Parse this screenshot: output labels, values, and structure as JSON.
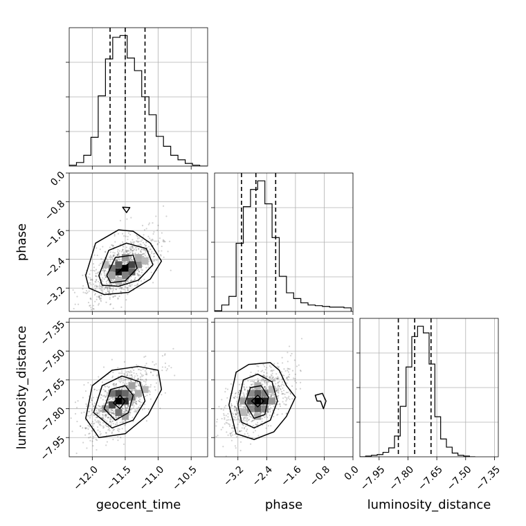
{
  "chart_data": {
    "type": "corner",
    "parameters": [
      "geocent_time",
      "phase",
      "luminosity_distance"
    ],
    "ranges": {
      "geocent_time": [
        -12.35,
        -10.25
      ],
      "phase": [
        -3.85,
        0.0
      ],
      "luminosity_distance": [
        -8.05,
        -7.33
      ]
    },
    "ticks": {
      "geocent_time": [
        -12.0,
        -11.5,
        -11.0,
        -10.5
      ],
      "phase": [
        -3.2,
        -2.4,
        -1.6,
        -0.8,
        0.0
      ],
      "luminosity_distance": [
        -7.95,
        -7.8,
        -7.65,
        -7.5,
        -7.35
      ]
    },
    "tick_labels": {
      "geocent_time": [
        "−12.0",
        "−11.5",
        "−11.0",
        "−10.5"
      ],
      "phase": [
        "−3.2",
        "−2.4",
        "−1.6",
        "−0.8",
        "0.0"
      ],
      "luminosity_distance": [
        "−7.95",
        "−7.80",
        "−7.65",
        "−7.50",
        "−7.35"
      ]
    },
    "grid": true,
    "histograms": {
      "geocent_time": {
        "bin_edges": [
          -12.35,
          -12.24,
          -12.13,
          -12.02,
          -11.91,
          -11.8,
          -11.69,
          -11.58,
          -11.47,
          -11.36,
          -11.25,
          -11.14,
          -11.03,
          -10.92,
          -10.81,
          -10.7,
          -10.59,
          -10.48,
          -10.37,
          -10.26
        ],
        "counts": [
          1,
          4,
          12,
          32,
          78,
          119,
          143,
          145,
          120,
          106,
          77,
          57,
          33,
          22,
          12,
          7,
          3,
          1,
          0
        ],
        "quantiles": [
          -11.73,
          -11.5,
          -11.2
        ]
      },
      "phase": {
        "bin_edges": [
          -3.85,
          -3.65,
          -3.45,
          -3.25,
          -3.05,
          -2.85,
          -2.65,
          -2.45,
          -2.25,
          -2.05,
          -1.85,
          -1.65,
          -1.45,
          -1.25,
          -1.05,
          -0.85,
          -0.65,
          -0.45,
          -0.25,
          -0.05
        ],
        "counts": [
          1,
          9,
          21,
          95,
          146,
          170,
          182,
          150,
          103,
          49,
          26,
          18,
          12,
          9,
          8,
          7,
          6,
          6,
          5
        ],
        "quantiles": [
          -3.1,
          -2.7,
          -2.15
        ]
      },
      "luminosity_distance": {
        "bin_edges": [
          -8.05,
          -8.02,
          -7.99,
          -7.96,
          -7.93,
          -7.9,
          -7.87,
          -7.84,
          -7.81,
          -7.78,
          -7.75,
          -7.72,
          -7.69,
          -7.66,
          -7.63,
          -7.6,
          -7.57,
          -7.54,
          -7.51,
          -7.48,
          -7.45
        ],
        "counts": [
          0,
          1,
          2,
          3,
          6,
          12,
          28,
          68,
          121,
          162,
          176,
          167,
          125,
          54,
          24,
          13,
          5,
          2,
          1,
          0
        ],
        "quantiles": [
          -7.85,
          -7.765,
          -7.68
        ]
      }
    },
    "pair_plots": [
      {
        "x": "geocent_time",
        "y": "phase",
        "center": [
          -11.55,
          -2.65
        ],
        "contours": [
          [
            [
              -11.45,
              -2.52
            ],
            [
              -11.55,
              -2.65
            ],
            [
              -11.62,
              -2.78
            ],
            [
              -11.5,
              -2.62
            ]
          ],
          [
            [
              -11.78,
              -2.85
            ],
            [
              -11.65,
              -2.35
            ],
            [
              -11.38,
              -2.28
            ],
            [
              -11.32,
              -2.65
            ],
            [
              -11.5,
              -3.0
            ],
            [
              -11.72,
              -3.05
            ]
          ],
          [
            [
              -11.9,
              -2.85
            ],
            [
              -11.75,
              -2.15
            ],
            [
              -11.48,
              -1.95
            ],
            [
              -11.18,
              -2.1
            ],
            [
              -11.08,
              -2.55
            ],
            [
              -11.3,
              -2.98
            ],
            [
              -11.6,
              -3.15
            ],
            [
              -11.85,
              -3.12
            ]
          ],
          [
            [
              -12.1,
              -2.85
            ],
            [
              -11.95,
              -1.95
            ],
            [
              -11.6,
              -1.58
            ],
            [
              -11.38,
              -1.62
            ],
            [
              -11.12,
              -1.95
            ],
            [
              -10.95,
              -2.45
            ],
            [
              -11.12,
              -2.95
            ],
            [
              -11.45,
              -3.32
            ],
            [
              -11.82,
              -3.38
            ],
            [
              -12.05,
              -3.2
            ]
          ],
          [
            [
              -11.54,
              -0.95
            ],
            [
              -11.48,
              -1.1
            ],
            [
              -11.43,
              -0.96
            ]
          ]
        ],
        "density_cells": [
          [
            -11.5,
            -2.65,
            1.0
          ],
          [
            -11.6,
            -2.75,
            0.9
          ],
          [
            -11.4,
            -2.55,
            0.7
          ],
          [
            -11.6,
            -2.55,
            0.6
          ],
          [
            -11.4,
            -2.75,
            0.55
          ],
          [
            -11.7,
            -2.65,
            0.5
          ],
          [
            -11.3,
            -2.55,
            0.4
          ],
          [
            -11.5,
            -2.85,
            0.45
          ],
          [
            -11.5,
            -2.35,
            0.35
          ],
          [
            -11.3,
            -2.35,
            0.25
          ],
          [
            -11.7,
            -2.85,
            0.3
          ],
          [
            -11.2,
            -2.45,
            0.2
          ],
          [
            -11.8,
            -2.55,
            0.2
          ],
          [
            -11.6,
            -3.0,
            0.2
          ]
        ]
      },
      {
        "x": "geocent_time",
        "y": "luminosity_distance",
        "center": [
          -11.6,
          -7.76
        ],
        "contours": [
          [
            [
              -11.68,
              -7.77
            ],
            [
              -11.58,
              -7.73
            ],
            [
              -11.5,
              -7.76
            ],
            [
              -11.58,
              -7.8
            ]
          ],
          [
            [
              -11.82,
              -7.8
            ],
            [
              -11.72,
              -7.7
            ],
            [
              -11.5,
              -7.68
            ],
            [
              -11.38,
              -7.73
            ],
            [
              -11.45,
              -7.82
            ],
            [
              -11.65,
              -7.86
            ]
          ],
          [
            [
              -11.98,
              -7.82
            ],
            [
              -11.85,
              -7.68
            ],
            [
              -11.55,
              -7.63
            ],
            [
              -11.28,
              -7.66
            ],
            [
              -11.2,
              -7.76
            ],
            [
              -11.38,
              -7.86
            ],
            [
              -11.7,
              -7.9
            ]
          ],
          [
            [
              -12.1,
              -7.85
            ],
            [
              -12.0,
              -7.68
            ],
            [
              -11.7,
              -7.6
            ],
            [
              -11.3,
              -7.58
            ],
            [
              -11.0,
              -7.6
            ],
            [
              -10.95,
              -7.7
            ],
            [
              -11.15,
              -7.83
            ],
            [
              -11.5,
              -7.93
            ],
            [
              -11.9,
              -7.95
            ]
          ]
        ],
        "density_cells": [
          [
            -11.6,
            -7.76,
            1.0
          ],
          [
            -11.5,
            -7.76,
            0.8
          ],
          [
            -11.7,
            -7.78,
            0.7
          ],
          [
            -11.6,
            -7.72,
            0.7
          ],
          [
            -11.5,
            -7.72,
            0.55
          ],
          [
            -11.7,
            -7.72,
            0.5
          ],
          [
            -11.6,
            -7.82,
            0.5
          ],
          [
            -11.4,
            -7.74,
            0.4
          ],
          [
            -11.8,
            -7.8,
            0.35
          ],
          [
            -11.4,
            -7.68,
            0.3
          ],
          [
            -11.3,
            -7.72,
            0.25
          ],
          [
            -11.5,
            -7.84,
            0.3
          ],
          [
            -11.2,
            -7.7,
            0.2
          ]
        ]
      },
      {
        "x": "phase",
        "y": "luminosity_distance",
        "center": [
          -2.65,
          -7.76
        ],
        "contours": [
          [
            [
              -2.82,
              -7.76
            ],
            [
              -2.65,
              -7.73
            ],
            [
              -2.48,
              -7.76
            ],
            [
              -2.65,
              -7.79
            ]
          ],
          [
            [
              -3.0,
              -7.77
            ],
            [
              -2.85,
              -7.69
            ],
            [
              -2.55,
              -7.68
            ],
            [
              -2.35,
              -7.74
            ],
            [
              -2.45,
              -7.83
            ],
            [
              -2.75,
              -7.85
            ]
          ],
          [
            [
              -3.2,
              -7.78
            ],
            [
              -3.05,
              -7.65
            ],
            [
              -2.65,
              -7.62
            ],
            [
              -2.25,
              -7.66
            ],
            [
              -2.1,
              -7.76
            ],
            [
              -2.3,
              -7.86
            ],
            [
              -2.75,
              -7.9
            ],
            [
              -3.1,
              -7.87
            ]
          ],
          [
            [
              -3.45,
              -7.78
            ],
            [
              -3.25,
              -7.61
            ],
            [
              -2.9,
              -7.57
            ],
            [
              -2.3,
              -7.56
            ],
            [
              -2.05,
              -7.6
            ],
            [
              -1.85,
              -7.68
            ],
            [
              -1.6,
              -7.74
            ],
            [
              -1.85,
              -7.84
            ],
            [
              -2.2,
              -7.92
            ],
            [
              -2.75,
              -7.96
            ],
            [
              -3.25,
              -7.93
            ]
          ],
          [
            [
              -1.05,
              -7.73
            ],
            [
              -0.85,
              -7.72
            ],
            [
              -0.75,
              -7.76
            ],
            [
              -0.82,
              -7.8
            ],
            [
              -0.9,
              -7.76
            ],
            [
              -1.0,
              -7.76
            ]
          ]
        ],
        "density_cells": [
          [
            -2.65,
            -7.76,
            1.0
          ],
          [
            -2.45,
            -7.76,
            0.85
          ],
          [
            -2.85,
            -7.76,
            0.7
          ],
          [
            -2.65,
            -7.72,
            0.6
          ],
          [
            -2.65,
            -7.8,
            0.6
          ],
          [
            -2.45,
            -7.72,
            0.45
          ],
          [
            -2.85,
            -7.72,
            0.4
          ],
          [
            -2.45,
            -7.8,
            0.4
          ],
          [
            -2.85,
            -7.8,
            0.4
          ],
          [
            -2.25,
            -7.76,
            0.35
          ],
          [
            -3.05,
            -7.76,
            0.3
          ],
          [
            -2.65,
            -7.68,
            0.25
          ],
          [
            -2.65,
            -7.84,
            0.25
          ],
          [
            -2.25,
            -7.7,
            0.2
          ],
          [
            -3.05,
            -7.82,
            0.2
          ]
        ]
      }
    ]
  }
}
